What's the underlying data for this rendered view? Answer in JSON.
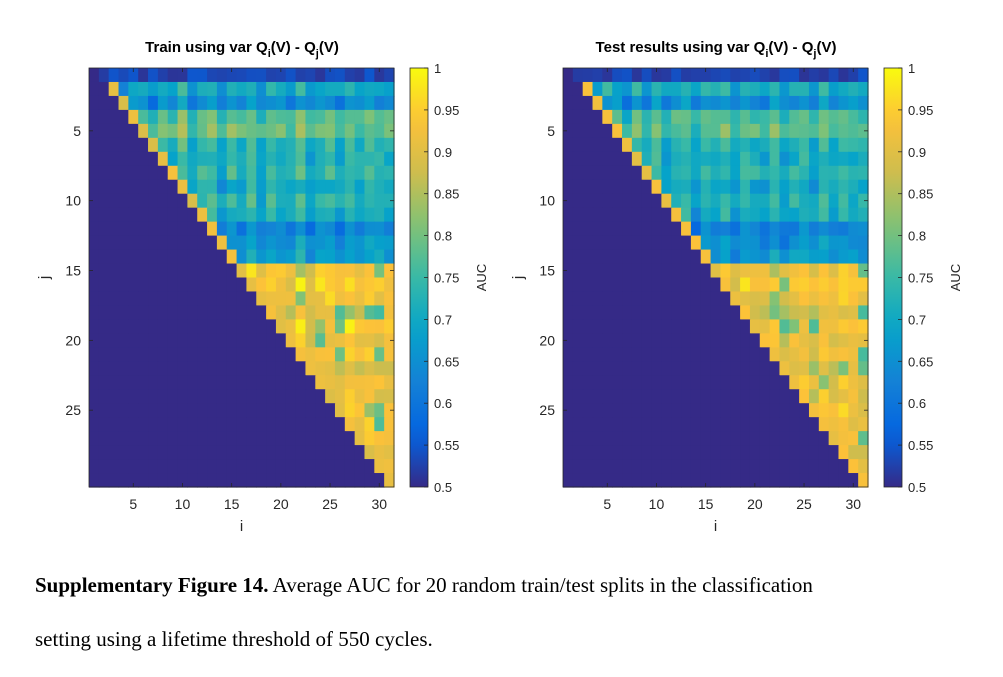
{
  "chart_data": [
    {
      "type": "heatmap",
      "title_prefix": "Train using var Q",
      "title_sub1": "i",
      "title_mid": "(V) - Q",
      "title_sub2": "j",
      "title_suffix": "(V)",
      "xlabel": "i",
      "ylabel": "j",
      "x_ticks": [
        5,
        10,
        15,
        20,
        25,
        30
      ],
      "y_ticks": [
        5,
        10,
        15,
        20,
        25
      ],
      "x_range": [
        1,
        31
      ],
      "y_range": [
        1,
        30
      ],
      "colorbar_label": "AUC",
      "colorbar_ticks": [
        1,
        0.95,
        0.9,
        0.85,
        0.8,
        0.75,
        0.7,
        0.65,
        0.6,
        0.55,
        0.5
      ],
      "clim": [
        0.5,
        1
      ],
      "colormap": "parula",
      "structure": "cells with j < i hold AUC values; cells with j >= i are at the minimum 0.5",
      "column_offsets": [
        0,
        -0.03,
        0.05,
        -0.05,
        0.02,
        0.0,
        -0.04,
        0.03,
        -0.02,
        0.04,
        -0.03,
        0.01,
        0.03,
        -0.04,
        0.02,
        -0.01,
        0.03,
        -0.03,
        0.02,
        0.0,
        -0.02,
        0.03,
        -0.03,
        0.01,
        0.02,
        -0.02,
        0.03,
        -0.01,
        0.02,
        0.0,
        0.0
      ],
      "row_offsets": [
        0,
        0.02,
        -0.04,
        0.01,
        0.03,
        -0.03,
        0.0,
        0.02,
        -0.02,
        0.01,
        -0.01,
        -0.05,
        -0.02,
        0.0,
        0.02,
        0.03,
        0.01,
        -0.01,
        0.02,
        0.0,
        0.01,
        -0.02,
        0.01,
        0.0,
        0.02,
        0.0,
        0.01,
        0.0,
        0.0
      ],
      "band_profile": [
        {
          "row_to": 1,
          "value": 0.53
        },
        {
          "row_to": 3,
          "value": 0.68
        },
        {
          "row_to": 6,
          "value": 0.76
        },
        {
          "row_to": 11,
          "value": 0.72
        },
        {
          "row_to": 14,
          "value": 0.68
        },
        {
          "row_to": 29,
          "value": 0.91
        }
      ],
      "diagonal_value": 0.91,
      "noise_seed": 7
    },
    {
      "type": "heatmap",
      "title_prefix": "Test results using var Q",
      "title_sub1": "i",
      "title_mid": "(V) - Q",
      "title_sub2": "j",
      "title_suffix": "(V)",
      "xlabel": "i",
      "ylabel": "j",
      "x_ticks": [
        5,
        10,
        15,
        20,
        25,
        30
      ],
      "y_ticks": [
        5,
        10,
        15,
        20,
        25
      ],
      "x_range": [
        1,
        31
      ],
      "y_range": [
        1,
        30
      ],
      "colorbar_label": "AUC",
      "colorbar_ticks": [
        1,
        0.95,
        0.9,
        0.85,
        0.8,
        0.75,
        0.7,
        0.65,
        0.6,
        0.55,
        0.5
      ],
      "clim": [
        0.5,
        1
      ],
      "colormap": "parula",
      "structure": "cells with j < i hold AUC values; cells with j >= i are at the minimum 0.5",
      "column_offsets": [
        0,
        -0.03,
        0.05,
        -0.05,
        0.02,
        0.0,
        -0.04,
        0.03,
        -0.02,
        0.04,
        -0.03,
        0.01,
        0.03,
        -0.04,
        0.02,
        -0.01,
        0.03,
        -0.03,
        0.02,
        0.0,
        -0.02,
        0.03,
        -0.03,
        0.01,
        0.02,
        -0.02,
        0.03,
        -0.01,
        0.02,
        0.0,
        0.0
      ],
      "row_offsets": [
        0,
        0.02,
        -0.04,
        0.01,
        0.03,
        -0.03,
        0.0,
        0.02,
        -0.02,
        0.01,
        -0.01,
        -0.05,
        -0.02,
        0.0,
        0.02,
        0.03,
        0.01,
        -0.01,
        0.02,
        0.0,
        0.01,
        -0.02,
        0.01,
        0.0,
        0.02,
        0.0,
        0.01,
        0.0,
        0.0
      ],
      "band_profile": [
        {
          "row_to": 1,
          "value": 0.53
        },
        {
          "row_to": 3,
          "value": 0.69
        },
        {
          "row_to": 6,
          "value": 0.75
        },
        {
          "row_to": 11,
          "value": 0.71
        },
        {
          "row_to": 14,
          "value": 0.67
        },
        {
          "row_to": 29,
          "value": 0.9
        }
      ],
      "diagonal_value": 0.92,
      "noise_seed": 11
    }
  ],
  "caption": {
    "label": "Supplementary Figure 14.",
    "line1": " Average AUC for 20 random train/test splits in the classification",
    "line2": "setting using a lifetime threshold of 550 cycles."
  }
}
